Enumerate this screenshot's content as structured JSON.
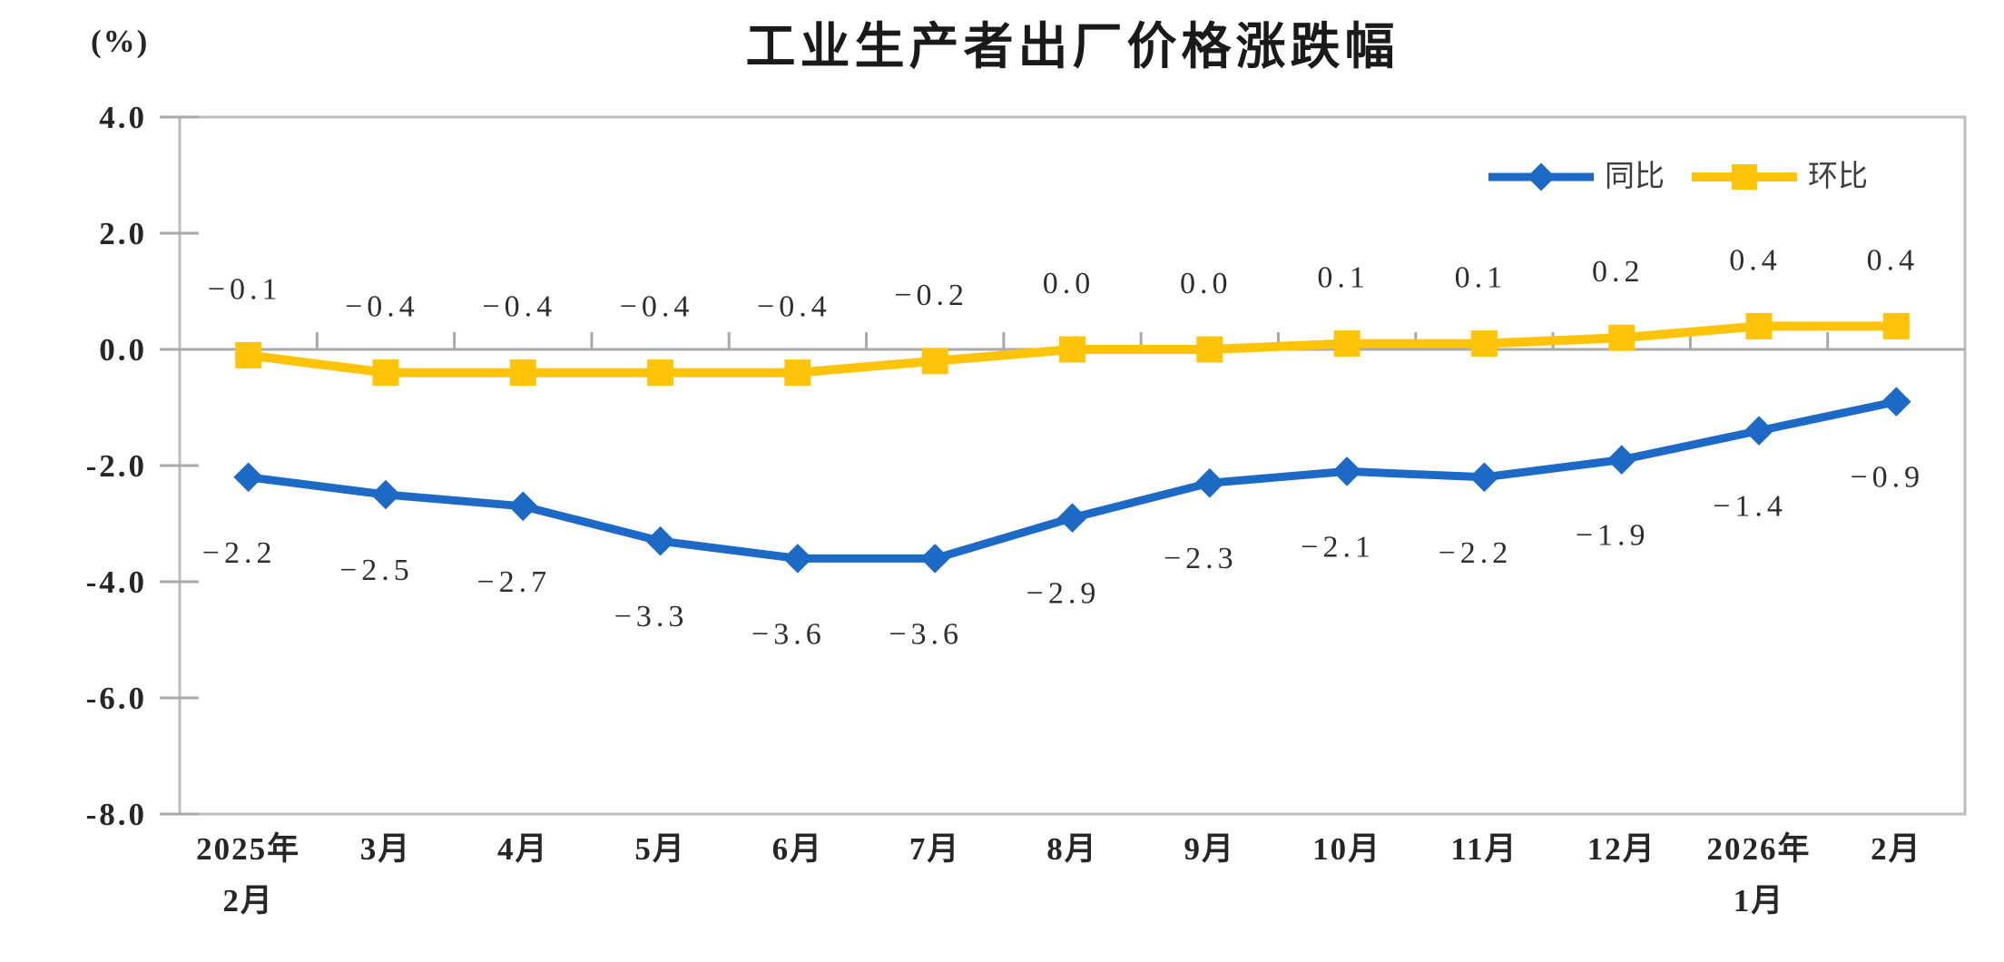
{
  "percent_label": "(%)",
  "chart_data": {
    "type": "line",
    "title": "工业生产者出厂价格涨跌幅",
    "ylabel": "(%)",
    "categories": [
      "2025年\n2月",
      "3月",
      "4月",
      "5月",
      "6月",
      "7月",
      "8月",
      "9月",
      "10月",
      "11月",
      "12月",
      "2026年\n1月",
      "2月"
    ],
    "series": [
      {
        "name": "同比",
        "marker": "diamond",
        "color": "#1c69c6",
        "values": [
          -2.2,
          -2.5,
          -2.7,
          -3.3,
          -3.6,
          -3.6,
          -2.9,
          -2.3,
          -2.1,
          -2.2,
          -1.9,
          -1.4,
          -0.9
        ],
        "labels": [
          "−2.2",
          "−2.5",
          "−2.7",
          "−3.3",
          "−3.6",
          "−3.6",
          "−2.9",
          "−2.3",
          "−2.1",
          "−2.2",
          "−1.9",
          "−1.4",
          "−0.9"
        ]
      },
      {
        "name": "环比",
        "marker": "square",
        "color": "#ffc408",
        "values": [
          -0.1,
          -0.4,
          -0.4,
          -0.4,
          -0.4,
          -0.2,
          0.0,
          0.0,
          0.1,
          0.1,
          0.2,
          0.4,
          0.4
        ],
        "labels": [
          "−0.1",
          "−0.4",
          "−0.4",
          "−0.4",
          "−0.4",
          "−0.2",
          "0.0",
          "0.0",
          "0.1",
          "0.1",
          "0.2",
          "0.4",
          "0.4"
        ]
      }
    ],
    "ylim": [
      -8.0,
      4.0
    ],
    "ytick_step": 2.0,
    "yticks": [
      "4.0",
      "2.0",
      "0.0",
      "-2.0",
      "-4.0",
      "-6.0",
      "-8.0"
    ],
    "grid": false,
    "legend_position": "top-right-inside",
    "axis_color": "#bdbdbd",
    "zero_line_color": "#a9a9a9"
  }
}
